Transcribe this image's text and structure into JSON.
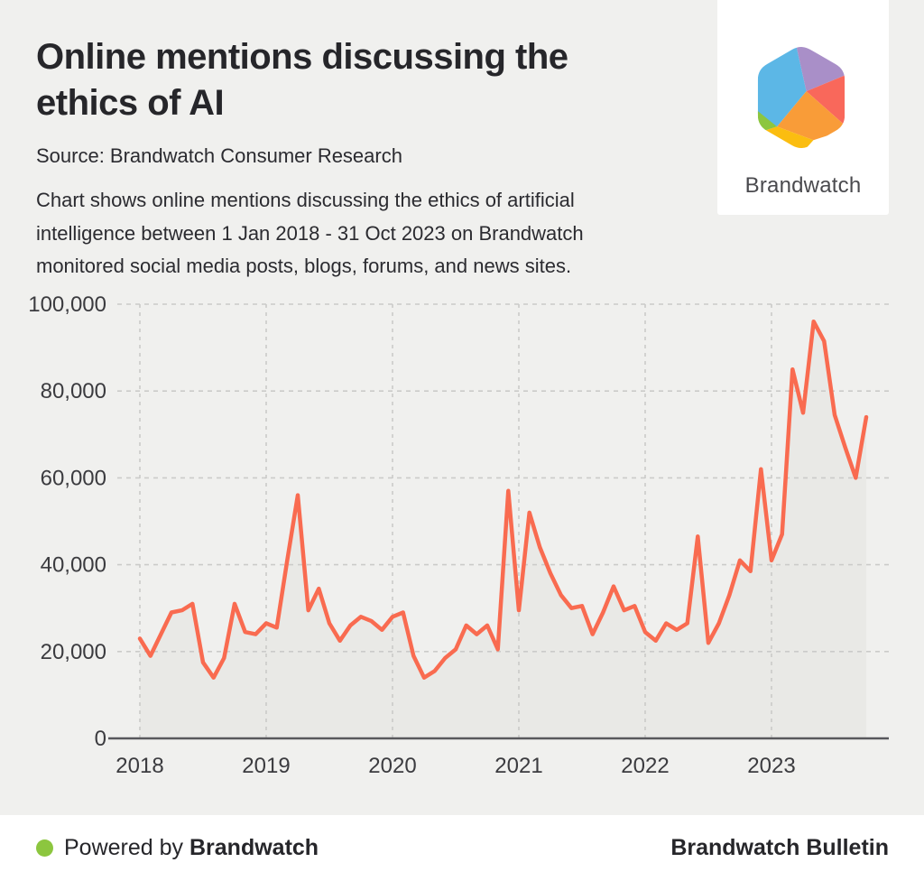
{
  "header": {
    "title": "Online mentions discussing the ethics of AI",
    "source": "Source: Brandwatch Consumer Research",
    "description": "Chart shows online mentions discussing the ethics of artificial intelligence between 1 Jan 2018 - 31 Oct 2023 on Brandwatch monitored social media posts, blogs, forums, and news sites."
  },
  "logo": {
    "brand_name": "Brandwatch",
    "hex_facet_colors": {
      "blue": "#5CB7E6",
      "purple": "#A98FC8",
      "red": "#F9685B",
      "orange": "#F99C38",
      "yellow": "#FBBD10",
      "green": "#8CC63F"
    }
  },
  "chart_data": {
    "type": "area",
    "title": "Online mentions discussing the ethics of AI",
    "xlabel": "",
    "ylabel": "",
    "ylim": [
      0,
      100000
    ],
    "grid": "dashed, horizontal every 20000 and vertical at each year",
    "legend": "none",
    "x_tick_labels": [
      "2018",
      "2019",
      "2020",
      "2021",
      "2022",
      "2023"
    ],
    "y_tick_labels": [
      "0",
      "20,000",
      "40,000",
      "60,000",
      "80,000",
      "100,000"
    ],
    "x_monthly_start": "2018-01",
    "x_monthly_end": "2023-10",
    "series": [
      {
        "name": "Online mentions",
        "line_color": "#F96B50",
        "fill_color": "#E9E9E6",
        "monthly_values": [
          23000,
          19000,
          24000,
          29000,
          29500,
          31000,
          17500,
          14000,
          18500,
          31000,
          24500,
          24000,
          26500,
          25500,
          41000,
          56000,
          29500,
          34500,
          26500,
          22500,
          26000,
          28000,
          27000,
          25000,
          28000,
          29000,
          19000,
          14000,
          15500,
          18500,
          20500,
          26000,
          24000,
          26000,
          20500,
          57000,
          29500,
          52000,
          44000,
          38000,
          33000,
          30000,
          30500,
          24000,
          29000,
          35000,
          29500,
          30500,
          24500,
          22500,
          26500,
          25000,
          26500,
          46500,
          22000,
          26500,
          33000,
          41000,
          38500,
          62000,
          41000,
          47000,
          85000,
          75000,
          96000,
          91500,
          74500,
          67000,
          60000,
          74000
        ]
      }
    ],
    "axis_colors": {
      "gridline": "#CBCBC9",
      "axis_line": "#58585C",
      "tick_label": "#3B3B3F"
    }
  },
  "footer": {
    "powered_by_prefix": "Powered by",
    "powered_by_brand": "Brandwatch",
    "right_text": "Brandwatch Bulletin",
    "dot_color": "#8CC63F"
  }
}
